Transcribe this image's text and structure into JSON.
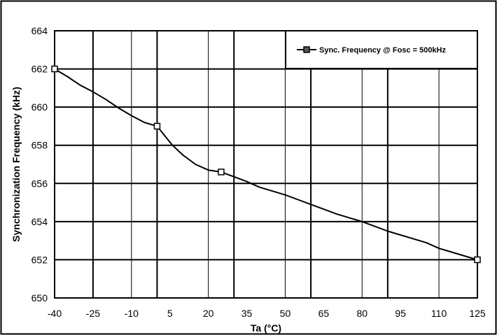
{
  "chart_data": {
    "type": "line",
    "title": "",
    "xlabel": "Ta (°C)",
    "ylabel": "Synchronization Frequency (kHz)",
    "xlim": [
      -40,
      125
    ],
    "ylim": [
      650,
      664
    ],
    "x_ticks": [
      -40,
      -25,
      -10,
      5,
      20,
      35,
      50,
      65,
      80,
      95,
      110,
      125
    ],
    "x_tick_labels": [
      "-40",
      "-25",
      "-10",
      "5",
      "20",
      "35",
      "50",
      "65",
      "80",
      "95",
      "110",
      "125"
    ],
    "y_ticks": [
      650,
      652,
      654,
      656,
      658,
      660,
      662,
      664
    ],
    "y_tick_labels": [
      "650",
      "652",
      "654",
      "656",
      "658",
      "660",
      "662",
      "664"
    ],
    "vertical_gridlines_x": [
      -40,
      -25,
      -10,
      0,
      20,
      30,
      50,
      60,
      80,
      90,
      110,
      125
    ],
    "grid": true,
    "legend_position": "top-right",
    "series": [
      {
        "name": "Sync. Frequency @ Fosc = 500kHz",
        "color": "#000000",
        "marker": "square",
        "marker_x": [
          -40,
          0,
          25,
          125
        ],
        "marker_y": [
          662.0,
          659.0,
          656.6,
          652.0
        ],
        "x": [
          -40,
          -35,
          -30,
          -25,
          -20,
          -15,
          -10,
          -5,
          0,
          3,
          6,
          10,
          15,
          20,
          25,
          30,
          35,
          40,
          45,
          50,
          55,
          60,
          65,
          70,
          75,
          80,
          85,
          90,
          95,
          100,
          105,
          110,
          115,
          120,
          125
        ],
        "y": [
          662.0,
          661.6,
          661.15,
          660.8,
          660.4,
          659.95,
          659.55,
          659.2,
          659.0,
          658.5,
          658.0,
          657.5,
          657.0,
          656.7,
          656.6,
          656.35,
          656.1,
          655.8,
          655.6,
          655.4,
          655.15,
          654.9,
          654.65,
          654.4,
          654.2,
          654.0,
          653.75,
          653.5,
          653.3,
          653.1,
          652.9,
          652.6,
          652.4,
          652.2,
          652.0
        ]
      }
    ]
  }
}
